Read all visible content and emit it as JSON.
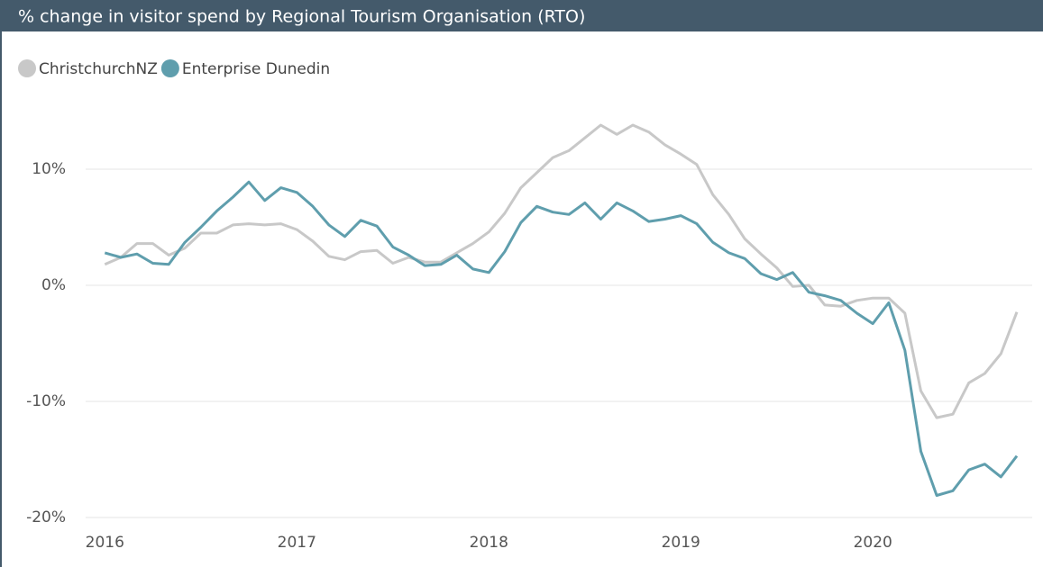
{
  "chart_data": {
    "type": "line",
    "title": "% change in visitor spend by Regional Tourism Organisation (RTO)",
    "x": [
      2016,
      2016.083,
      2016.167,
      2016.25,
      2016.333,
      2016.417,
      2016.5,
      2016.583,
      2016.667,
      2016.75,
      2016.833,
      2016.917,
      2017,
      2017.083,
      2017.167,
      2017.25,
      2017.333,
      2017.417,
      2017.5,
      2017.583,
      2017.667,
      2017.75,
      2017.833,
      2017.917,
      2018,
      2018.083,
      2018.167,
      2018.25,
      2018.333,
      2018.417,
      2018.5,
      2018.583,
      2018.667,
      2018.75,
      2018.833,
      2018.917,
      2019,
      2019.083,
      2019.167,
      2019.25,
      2019.333,
      2019.417,
      2019.5,
      2019.583,
      2019.667,
      2019.75,
      2019.833,
      2019.917,
      2020,
      2020.083,
      2020.167,
      2020.25,
      2020.333,
      2020.417,
      2020.5,
      2020.583,
      2020.667,
      2020.75
    ],
    "series": [
      {
        "name": "ChristchurchNZ",
        "color": "#c8c8c8",
        "values": [
          1.8,
          2.4,
          3.6,
          3.6,
          2.6,
          3.2,
          4.5,
          4.5,
          5.2,
          5.3,
          5.2,
          5.3,
          4.8,
          3.8,
          2.5,
          2.2,
          2.9,
          3.0,
          1.9,
          2.4,
          2.0,
          2.0,
          2.8,
          3.6,
          4.6,
          6.2,
          8.4,
          9.7,
          11.0,
          11.6,
          12.7,
          13.8,
          13.0,
          13.8,
          13.2,
          12.1,
          11.3,
          10.4,
          7.8,
          6.1,
          4.0,
          2.7,
          1.5,
          -0.1,
          0.0,
          -1.7,
          -1.8,
          -1.3,
          -1.1,
          -1.1,
          -2.4,
          -9.1,
          -11.4,
          -11.1,
          -8.4,
          -7.6,
          -5.9,
          -2.3
        ]
      },
      {
        "name": "Enterprise Dunedin",
        "color": "#5f9ead",
        "values": [
          2.8,
          2.4,
          2.7,
          1.9,
          1.8,
          3.7,
          5.0,
          6.4,
          7.6,
          8.9,
          7.3,
          8.4,
          8.0,
          6.8,
          5.2,
          4.2,
          5.6,
          5.1,
          3.3,
          2.6,
          1.7,
          1.8,
          2.6,
          1.4,
          1.1,
          2.9,
          5.4,
          6.8,
          6.3,
          6.1,
          7.1,
          5.7,
          7.1,
          6.4,
          5.5,
          5.7,
          6.0,
          5.3,
          3.7,
          2.8,
          2.3,
          1.0,
          0.5,
          1.1,
          -0.6,
          -0.9,
          -1.3,
          -2.4,
          -3.3,
          -1.5,
          -5.6,
          -14.3,
          -18.1,
          -17.7,
          -15.9,
          -15.4,
          -16.5,
          -14.7
        ]
      }
    ],
    "xlim": [
      2015.9,
      2020.83
    ],
    "xticks": [
      2016,
      2017,
      2018,
      2019,
      2020
    ],
    "ylim": [
      -20,
      15
    ],
    "yticks": [
      {
        "value": -20,
        "label": "-20%"
      },
      {
        "value": -10,
        "label": "-10%"
      },
      {
        "value": 0,
        "label": "0%"
      },
      {
        "value": 10,
        "label": "10%"
      }
    ],
    "grid": true,
    "legend": "top-left"
  }
}
